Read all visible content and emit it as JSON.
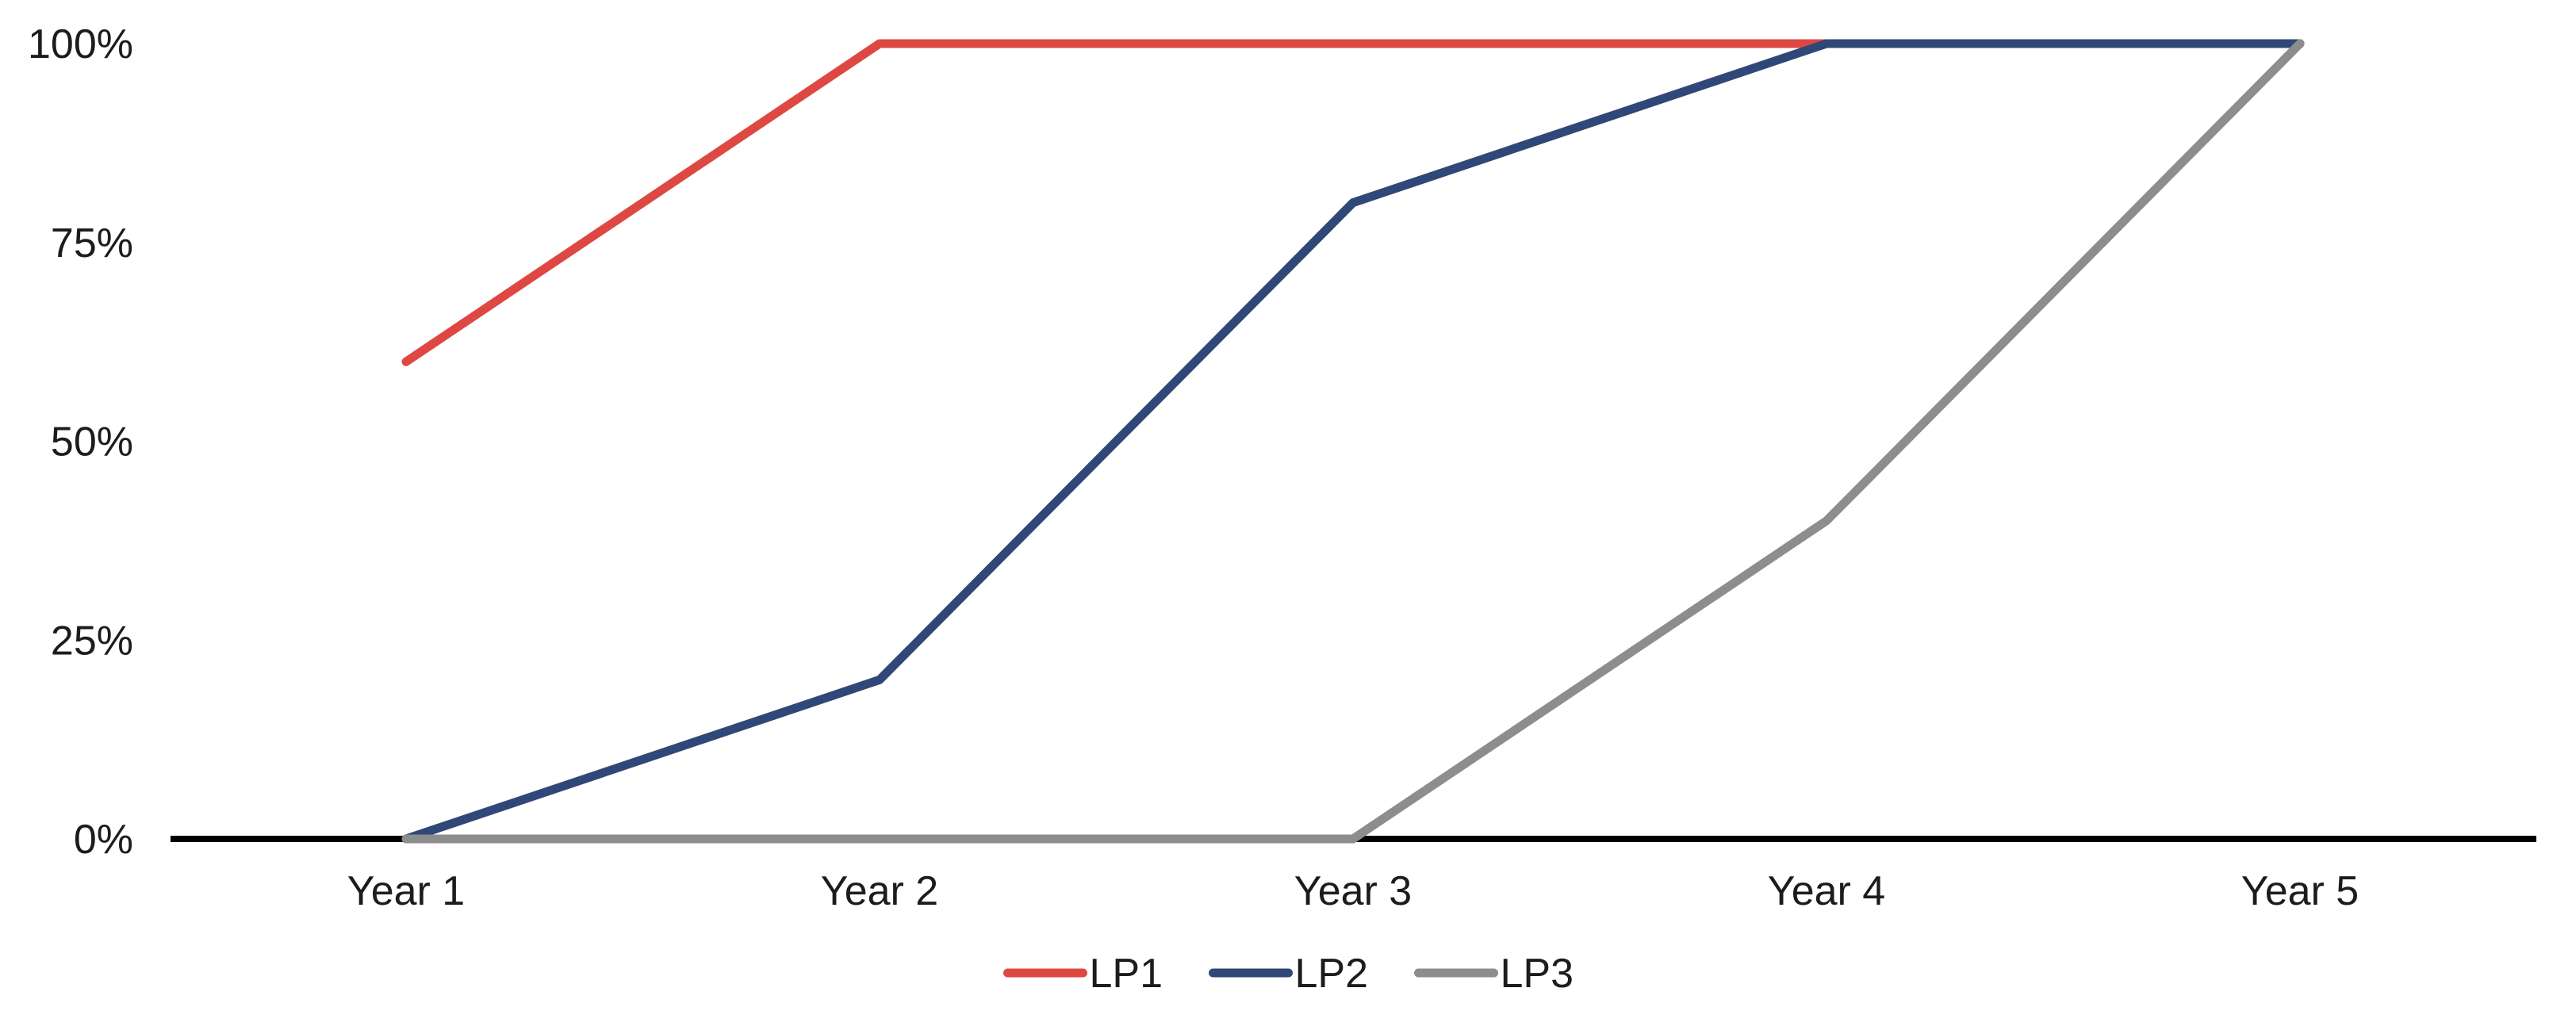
{
  "chart_data": {
    "type": "line",
    "title": "",
    "xlabel": "",
    "ylabel": "",
    "categories": [
      "Year 1",
      "Year 2",
      "Year 3",
      "Year 4",
      "Year 5"
    ],
    "series": [
      {
        "name": "LP1",
        "color": "#DE4843",
        "values": [
          60,
          100,
          100,
          100,
          100
        ]
      },
      {
        "name": "LP2",
        "color": "#304877",
        "values": [
          0,
          20,
          80,
          100,
          100
        ]
      },
      {
        "name": "LP3",
        "color": "#8D8D8D",
        "values": [
          0,
          0,
          0,
          40,
          100
        ]
      }
    ],
    "ylim": [
      0,
      100
    ],
    "yticks": [
      0,
      25,
      50,
      75,
      100
    ],
    "ytick_labels": [
      "0%",
      "25%",
      "50%",
      "75%",
      "100%"
    ],
    "grid": false,
    "legend_position": "bottom-center",
    "axis_color": "#000000",
    "text_color": "#1C1C1C",
    "background_color": "#FFFFFF"
  }
}
